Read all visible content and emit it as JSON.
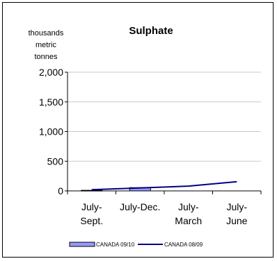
{
  "chart_data": {
    "type": "bar",
    "title": "Sulphate",
    "ylabel": [
      "thousands",
      "metric",
      "tonnes"
    ],
    "ylim": [
      0,
      2000
    ],
    "yticks": [
      "2,000",
      "1,500",
      "1,000",
      "500",
      "0"
    ],
    "ytick_values": [
      2000,
      1500,
      1000,
      500,
      0
    ],
    "categories": [
      [
        "July-",
        "Sept."
      ],
      [
        "July-Dec."
      ],
      [
        "July-",
        "March"
      ],
      [
        "July-",
        "June"
      ]
    ],
    "grid": true,
    "legend_position": "bottom",
    "series": [
      {
        "name": "CANADA 09/10",
        "kind": "bar",
        "color": "#9999ff",
        "values": [
          10,
          55,
          null,
          null
        ]
      },
      {
        "name": "CANADA 08/09",
        "kind": "line",
        "color": "#000080",
        "values": [
          20,
          50,
          80,
          155
        ]
      }
    ]
  }
}
